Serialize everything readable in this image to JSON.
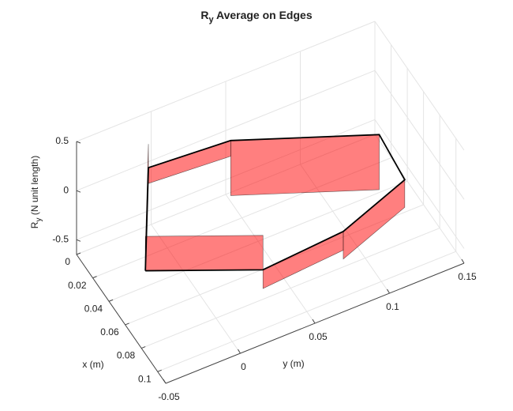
{
  "chart_data": {
    "type": "patch3d",
    "title": [
      "R",
      "y",
      " Average on Edges"
    ],
    "xlabel": "x (m)",
    "ylabel": "y (m)",
    "zlabel": [
      "R",
      "y",
      " (N unit length)"
    ],
    "x": [
      0.072,
      0.004,
      0.008,
      0.044,
      0.081,
      0.099,
      0.103
    ],
    "y": [
      -0.043,
      -0.004,
      0.049,
      0.129,
      0.126,
      0.075,
      0.019
    ],
    "values": [
      0.24,
      -0.16,
      -0.56,
      0,
      -0.28,
      -0.19,
      0.35
    ],
    "color": "#ff0000",
    "alpha": 0.5,
    "edge_color": "#000000",
    "xlim": [
      0,
      0.11
    ],
    "ylim": [
      -0.05,
      0.15
    ],
    "zlim": [
      -0.65,
      0.5
    ],
    "xticks": [
      0,
      0.02,
      0.04,
      0.06,
      0.08,
      0.1
    ],
    "yticks": [
      -0.05,
      0,
      0.05,
      0.1,
      0.15
    ],
    "zticks": [
      -0.5,
      0,
      0.5
    ],
    "grid": true
  }
}
